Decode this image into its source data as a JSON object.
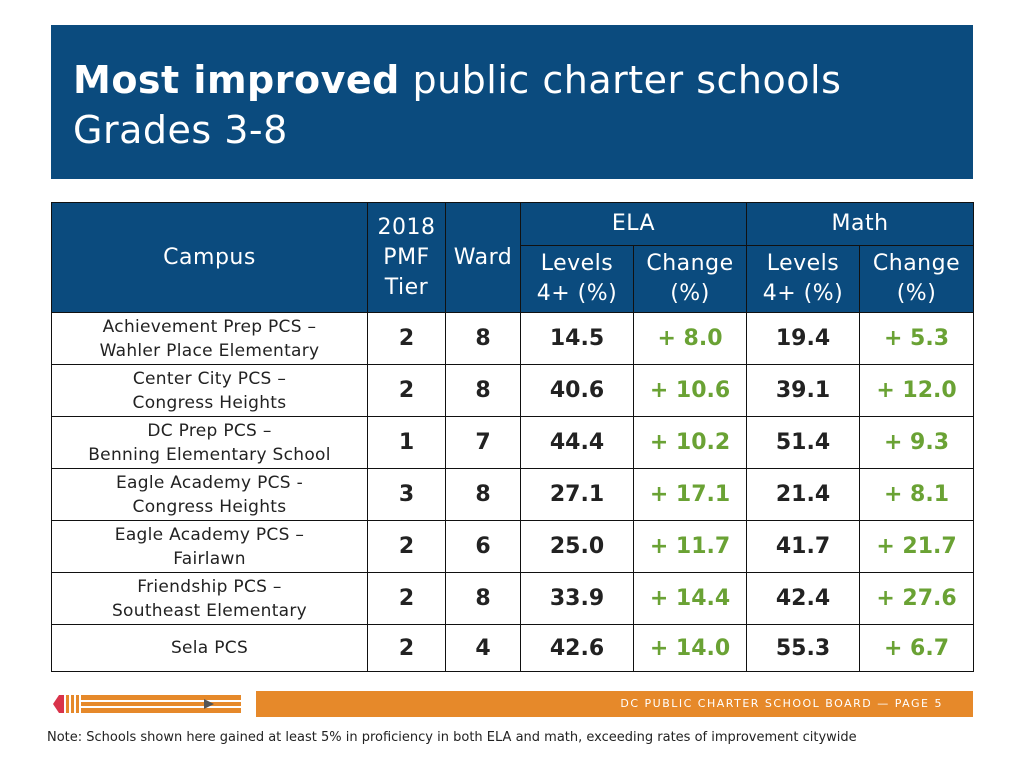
{
  "header": {
    "title_bold": "Most improved",
    "title_rest": "public charter schools",
    "subtitle": "Grades 3-8"
  },
  "table": {
    "headers": {
      "campus": "Campus",
      "tier_line1": "2018",
      "tier_line2": "PMF",
      "tier_line3": "Tier",
      "ward": "Ward",
      "ela": "ELA",
      "math": "Math",
      "levels_line1": "Levels",
      "levels_line2": "4+ (%)",
      "change_line1": "Change",
      "change_line2": "(%)"
    },
    "rows": [
      {
        "campus_line1": "Achievement Prep PCS –",
        "campus_line2": "Wahler Place Elementary",
        "tier": "2",
        "ward": "8",
        "ela_levels": "14.5",
        "ela_change": "+ 8.0",
        "math_levels": "19.4",
        "math_change": "+ 5.3"
      },
      {
        "campus_line1": "Center City PCS –",
        "campus_line2": "Congress Heights",
        "tier": "2",
        "ward": "8",
        "ela_levels": "40.6",
        "ela_change": "+ 10.6",
        "math_levels": "39.1",
        "math_change": "+ 12.0"
      },
      {
        "campus_line1": "DC Prep PCS –",
        "campus_line2": "Benning Elementary School",
        "tier": "1",
        "ward": "7",
        "ela_levels": "44.4",
        "ela_change": "+ 10.2",
        "math_levels": "51.4",
        "math_change": "+ 9.3"
      },
      {
        "campus_line1": "Eagle Academy PCS -",
        "campus_line2": "Congress Heights",
        "tier": "3",
        "ward": "8",
        "ela_levels": "27.1",
        "ela_change": "+ 17.1",
        "math_levels": "21.4",
        "math_change": "+ 8.1"
      },
      {
        "campus_line1": "Eagle Academy PCS –",
        "campus_line2": "Fairlawn",
        "tier": "2",
        "ward": "6",
        "ela_levels": "25.0",
        "ela_change": "+ 11.7",
        "math_levels": "41.7",
        "math_change": "+ 21.7"
      },
      {
        "campus_line1": "Friendship PCS –",
        "campus_line2": "Southeast Elementary",
        "tier": "2",
        "ward": "8",
        "ela_levels": "33.9",
        "ela_change": "+ 14.4",
        "math_levels": "42.4",
        "math_change": "+ 27.6"
      },
      {
        "campus_line1": "Sela PCS",
        "campus_line2": "",
        "tier": "2",
        "ward": "4",
        "ela_levels": "42.6",
        "ela_change": "+ 14.0",
        "math_levels": "55.3",
        "math_change": "+ 6.7"
      }
    ]
  },
  "footer": {
    "page_label": "DC PUBLIC CHARTER SCHOOL BOARD — PAGE 5",
    "note": "Note: Schools shown here gained at least 5% in proficiency in both ELA and math, exceeding rates of improvement citywide"
  },
  "colors": {
    "header_bg": "#0b4b7e",
    "change_green": "#6aa234",
    "footer_orange": "#e6892a",
    "logo_red": "#d9334a"
  },
  "icons": {
    "logo": "pencil-logo-icon",
    "arrow": "play-arrow-icon"
  }
}
